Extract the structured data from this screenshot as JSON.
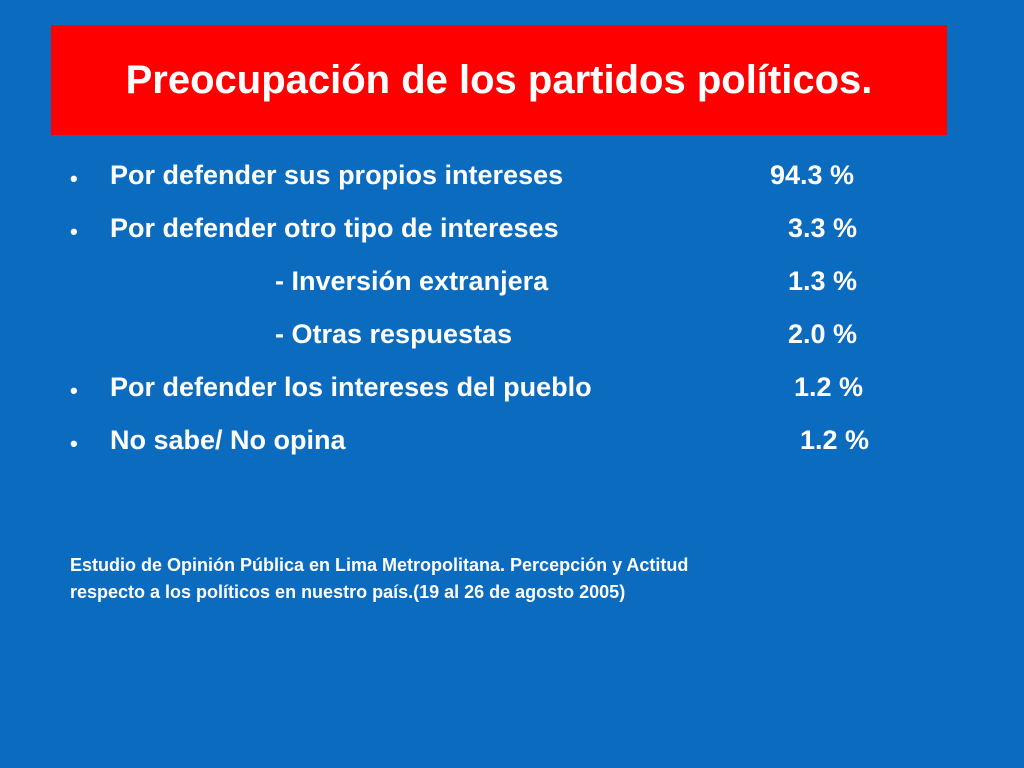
{
  "slide": {
    "title": "Preocupación de los partidos políticos.",
    "items": [
      {
        "bullet": "•",
        "label": "Por defender sus propios intereses",
        "value": "94.3 %"
      },
      {
        "bullet": "•",
        "label": "Por defender otro tipo de intereses",
        "value": "3.3 %"
      },
      {
        "bullet": "",
        "label": "- Inversión extranjera",
        "value": "1.3 %"
      },
      {
        "bullet": "",
        "label": "- Otras respuestas",
        "value": "2.0 %"
      },
      {
        "bullet": "•",
        "label": "Por defender los intereses del pueblo",
        "value": "1.2 %"
      },
      {
        "bullet": "•",
        "label": "No sabe/ No opina",
        "value": "1.2 %"
      }
    ],
    "footnote_line1": "Estudio de Opinión Pública en Lima Metropolitana. Percepción y Actitud",
    "footnote_line2": "respecto a los políticos en nuestro país.(19 al 26 de agosto 2005)"
  },
  "colors": {
    "background": "#0b6bbf",
    "title_box": "#ff0000",
    "text": "#ffffff"
  }
}
